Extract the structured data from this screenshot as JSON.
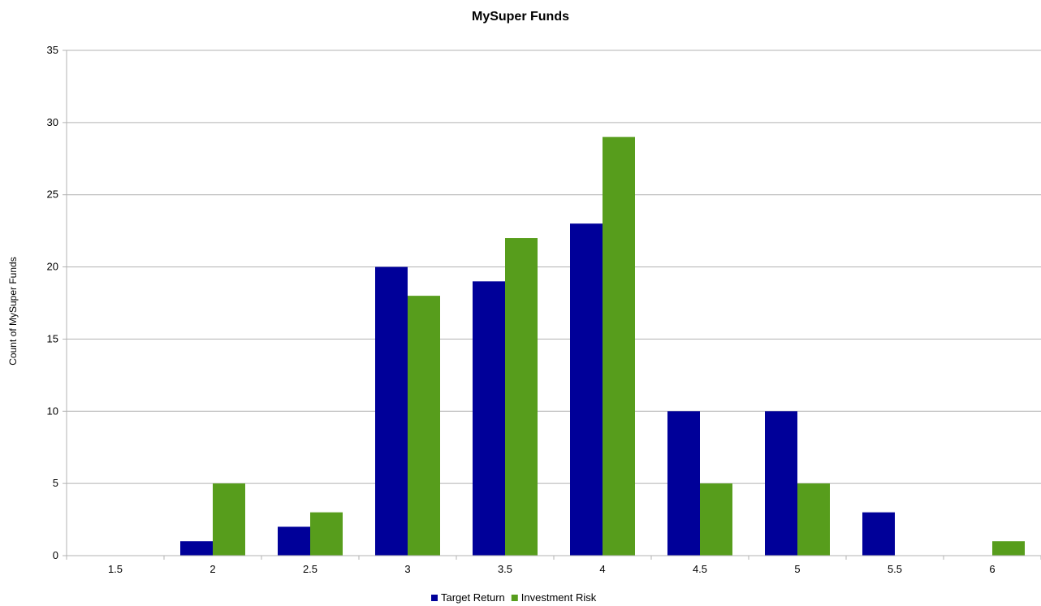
{
  "chart_data": {
    "type": "bar",
    "title": "MySuper Funds",
    "xlabel": "",
    "ylabel": "Count of MySuper Funds",
    "categories": [
      "1.5",
      "2",
      "2.5",
      "3",
      "3.5",
      "4",
      "4.5",
      "5",
      "5.5",
      "6"
    ],
    "series": [
      {
        "name": "Target Return",
        "color": "#000099",
        "values": [
          0,
          1,
          2,
          20,
          19,
          23,
          10,
          10,
          3,
          0
        ]
      },
      {
        "name": "Investment Risk",
        "color": "#579d1c",
        "values": [
          0,
          5,
          3,
          18,
          22,
          29,
          5,
          5,
          0,
          1
        ]
      }
    ],
    "ylim": [
      0,
      35
    ],
    "yticks": [
      0,
      5,
      10,
      15,
      20,
      25,
      30,
      35
    ],
    "grid": true,
    "legend": "bottom"
  }
}
